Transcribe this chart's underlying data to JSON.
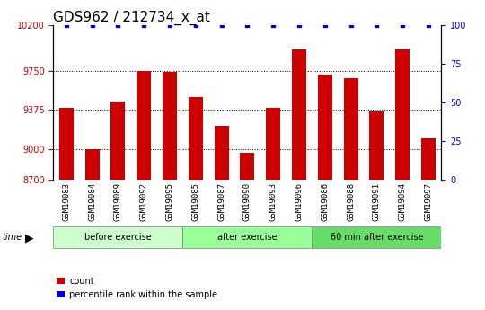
{
  "title": "GDS962 / 212734_x_at",
  "categories": [
    "GSM19083",
    "GSM19084",
    "GSM19089",
    "GSM19092",
    "GSM19095",
    "GSM19085",
    "GSM19087",
    "GSM19090",
    "GSM19093",
    "GSM19096",
    "GSM19086",
    "GSM19088",
    "GSM19091",
    "GSM19094",
    "GSM19097"
  ],
  "values": [
    9400,
    9000,
    9460,
    9750,
    9745,
    9500,
    9220,
    8960,
    9395,
    9960,
    9720,
    9685,
    9365,
    9960,
    9105
  ],
  "percentile_values": [
    100,
    100,
    100,
    100,
    100,
    100,
    100,
    100,
    100,
    100,
    100,
    100,
    100,
    100,
    100
  ],
  "bar_color": "#cc0000",
  "percentile_color": "#0000dd",
  "ylim_left": [
    8700,
    10200
  ],
  "ylim_right": [
    0,
    100
  ],
  "yticks_left": [
    8700,
    9000,
    9375,
    9750,
    10200
  ],
  "yticks_right": [
    0,
    25,
    50,
    75,
    100
  ],
  "groups": [
    {
      "label": "before exercise",
      "start": 0,
      "end": 5,
      "color": "#ccffcc"
    },
    {
      "label": "after exercise",
      "start": 5,
      "end": 10,
      "color": "#99ff99"
    },
    {
      "label": "60 min after exercise",
      "start": 10,
      "end": 15,
      "color": "#66dd66"
    }
  ],
  "legend_count_label": "count",
  "legend_percentile_label": "percentile rank within the sample",
  "background_color": "#ffffff",
  "plot_bg_color": "#ffffff",
  "xtick_bg_color": "#cccccc",
  "title_fontsize": 11,
  "tick_fontsize": 7,
  "label_fontsize": 7
}
